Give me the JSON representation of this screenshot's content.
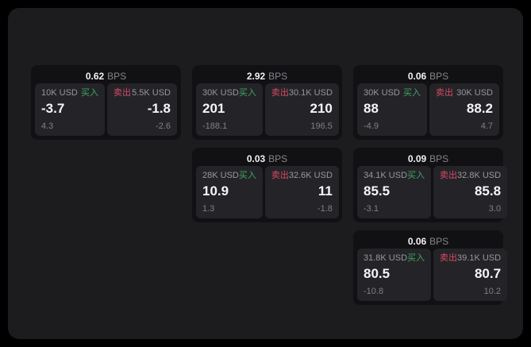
{
  "labels": {
    "buy": "买入",
    "sell": "卖出",
    "bps_unit": "BPS"
  },
  "colors": {
    "buy_green": "#3ea662",
    "sell_red": "#d84a66",
    "panel_bg": "#1c1c1e",
    "card_bg": "#111114",
    "tile_bg": "#242428"
  },
  "cards": [
    {
      "row": 1,
      "col": 1,
      "spread_bps": "0.62",
      "buy": {
        "size": "10K USD",
        "price": "-3.7",
        "secondary": "4.3"
      },
      "sell": {
        "size": "5.5K USD",
        "price": "-1.8",
        "secondary": "-2.6"
      }
    },
    {
      "row": 1,
      "col": 2,
      "spread_bps": "2.92",
      "buy": {
        "size": "30K USD",
        "price": "201",
        "secondary": "-188.1"
      },
      "sell": {
        "size": "30.1K USD",
        "price": "210",
        "secondary": "196.5"
      }
    },
    {
      "row": 1,
      "col": 3,
      "spread_bps": "0.06",
      "buy": {
        "size": "30K USD",
        "price": "88",
        "secondary": "-4.9"
      },
      "sell": {
        "size": "30K USD",
        "price": "88.2",
        "secondary": "4.7"
      }
    },
    {
      "row": 2,
      "col": 2,
      "spread_bps": "0.03",
      "buy": {
        "size": "28K USD",
        "price": "10.9",
        "secondary": "1.3"
      },
      "sell": {
        "size": "32.6K USD",
        "price": "11",
        "secondary": "-1.8"
      }
    },
    {
      "row": 2,
      "col": 3,
      "spread_bps": "0.09",
      "buy": {
        "size": "34.1K USD",
        "price": "85.5",
        "secondary": "-3.1"
      },
      "sell": {
        "size": "32.8K USD",
        "price": "85.8",
        "secondary": "3.0"
      }
    },
    {
      "row": 3,
      "col": 3,
      "spread_bps": "0.06",
      "buy": {
        "size": "31.8K USD",
        "price": "80.5",
        "secondary": "-10.8"
      },
      "sell": {
        "size": "39.1K USD",
        "price": "80.7",
        "secondary": "10.2"
      }
    }
  ]
}
